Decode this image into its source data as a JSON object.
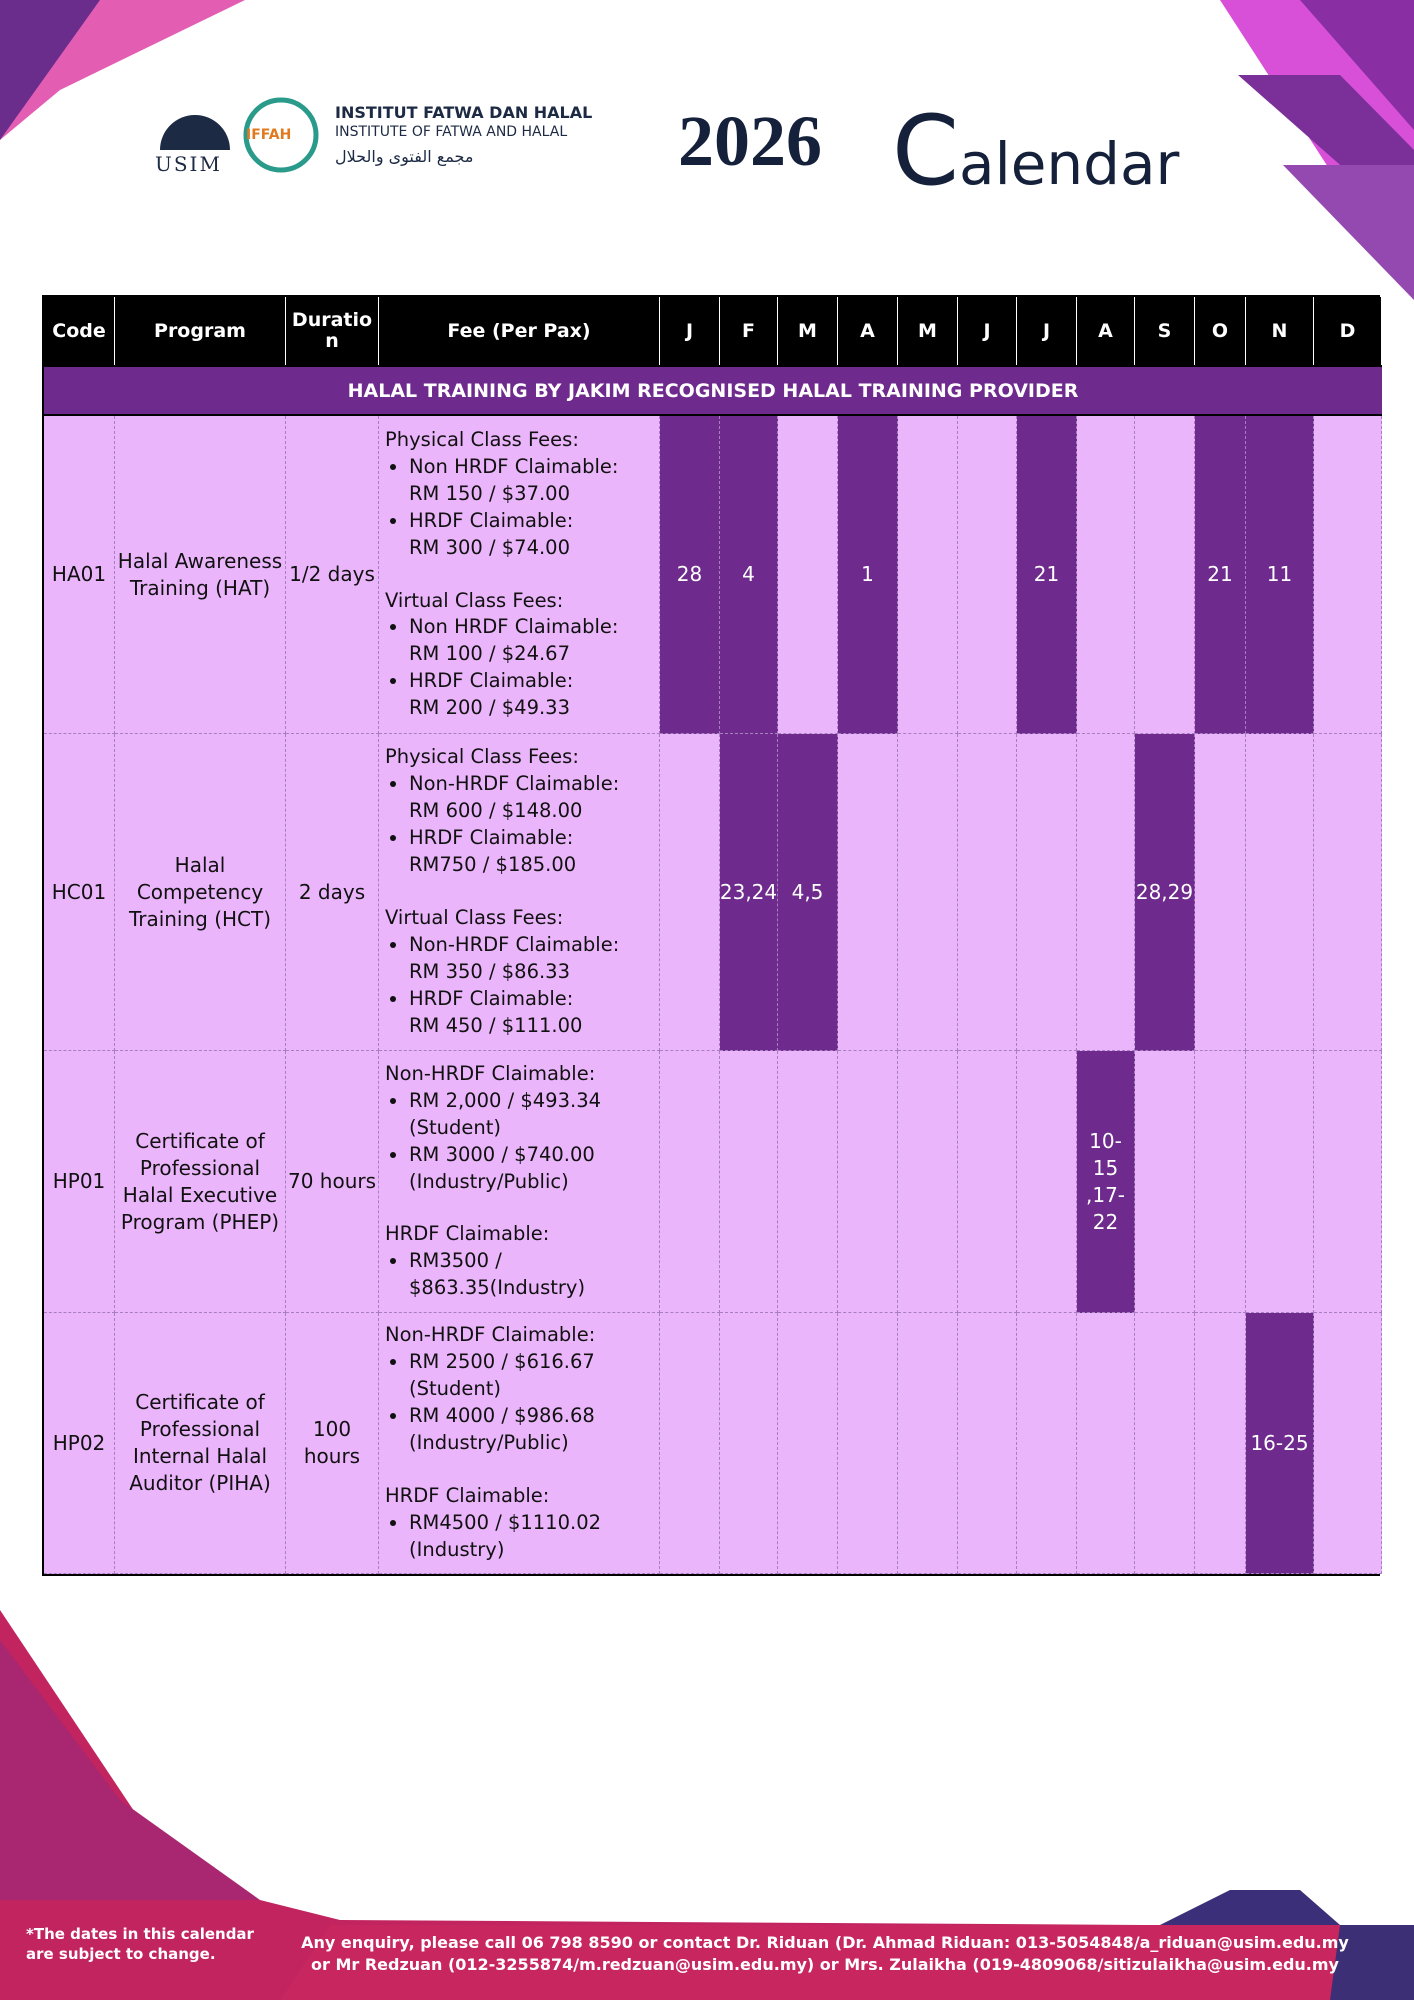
{
  "header": {
    "logo": {
      "usim": "USIM",
      "iffah": "IFFAH",
      "name_malay": "INSTITUT FATWA DAN HALAL",
      "name_english": "INSTITUTE OF FATWA AND HALAL",
      "name_arabic": "مجمع الفتوى والحلال"
    },
    "year": "2026",
    "title": "Calendar"
  },
  "table": {
    "headers": [
      "Code",
      "Program",
      "Duratio n",
      "Fee (Per Pax)",
      "J",
      "F",
      "M",
      "A",
      "M",
      "J",
      "J",
      "A",
      "S",
      "O",
      "N",
      "D"
    ],
    "section": "HALAL TRAINING BY JAKIM RECOGNISED HALAL TRAINING PROVIDER",
    "rows": [
      {
        "code": "HA01",
        "program": "Halal Awareness Training (HAT)",
        "duration": "1/2 days",
        "fee": [
          {
            "heading": "Physical Class Fees:",
            "items": [
              [
                "Non HRDF Claimable:",
                "RM 150 / $37.00"
              ],
              [
                "HRDF Claimable:",
                "RM 300 / $74.00"
              ]
            ]
          },
          {
            "heading": "Virtual Class Fees:",
            "items": [
              [
                "Non HRDF Claimable:",
                "RM 100 / $24.67"
              ],
              [
                "HRDF Claimable:",
                "RM 200 / $49.33"
              ]
            ]
          }
        ],
        "months": [
          "28",
          "4",
          null,
          "1",
          null,
          null,
          "21",
          null,
          null,
          "21",
          "11",
          null
        ]
      },
      {
        "code": "HC01",
        "program": "Halal Competency Training (HCT)",
        "duration": "2 days",
        "fee": [
          {
            "heading": "Physical Class Fees:",
            "items": [
              [
                "Non-HRDF Claimable:",
                "RM 600 / $148.00"
              ],
              [
                "HRDF Claimable:",
                "RM750 / $185.00"
              ]
            ]
          },
          {
            "heading": "Virtual Class Fees:",
            "items": [
              [
                "Non-HRDF Claimable:",
                "RM 350 / $86.33"
              ],
              [
                "HRDF Claimable:",
                "RM 450 / $111.00"
              ]
            ]
          }
        ],
        "months": [
          null,
          "23,24",
          "4,5",
          null,
          null,
          null,
          null,
          null,
          "28,29",
          null,
          null,
          null
        ]
      },
      {
        "code": "HP01",
        "program": "Certificate of Professional Halal Executive Program (PHEP)",
        "duration": "70 hours",
        "fee": [
          {
            "heading": "Non-HRDF Claimable:",
            "items": [
              [
                "RM 2,000 / $493.34",
                "(Student)"
              ],
              [
                "RM 3000 / $740.00",
                "(Industry/Public)"
              ]
            ]
          },
          {
            "heading": "HRDF Claimable:",
            "items": [
              [
                "RM3500 /",
                "$863.35(Industry)"
              ]
            ]
          }
        ],
        "months": [
          null,
          null,
          null,
          null,
          null,
          null,
          null,
          "10-15 ,17-22",
          null,
          null,
          null,
          null
        ]
      },
      {
        "code": "HP02",
        "program": "Certificate of Professional Internal Halal Auditor (PIHA)",
        "duration": "100 hours",
        "fee": [
          {
            "heading": "Non-HRDF Claimable:",
            "items": [
              [
                "RM 2500 / $616.67",
                "(Student)"
              ],
              [
                "RM 4000 / $986.68",
                "(Industry/Public)"
              ]
            ]
          },
          {
            "heading": "HRDF Claimable:",
            "items": [
              [
                "RM4500 / $1110.02",
                "(Industry)"
              ]
            ]
          }
        ],
        "months": [
          null,
          null,
          null,
          null,
          null,
          null,
          null,
          null,
          null,
          null,
          "16-25",
          null
        ]
      }
    ]
  },
  "footer": {
    "note": "*The dates in this calendar are subject to change.",
    "enquiry": [
      "Any enquiry, please call 06 798 8590 or contact Dr. Riduan (Dr. Ahmad Riduan: 013-5054848/a_riduan@usim.edu.my",
      "or  Mr Redzuan (012-3255874/m.redzuan@usim.edu.my) or Mrs. Zulaikha (019-4809068/sitizulaikha@usim.edu.my"
    ]
  }
}
